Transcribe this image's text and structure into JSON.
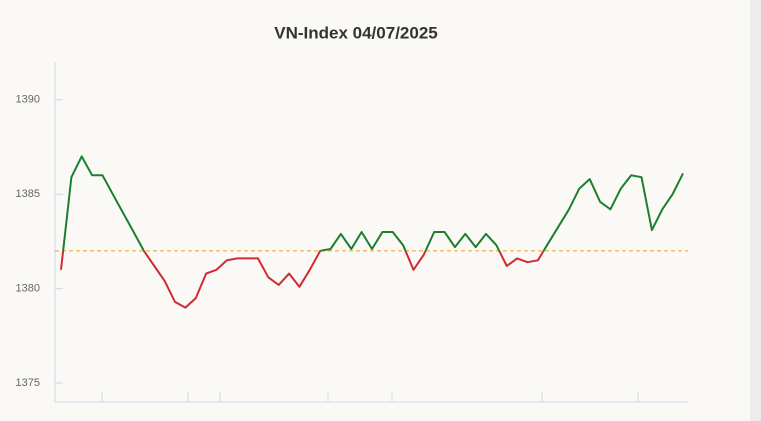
{
  "chart_data": {
    "type": "line",
    "title": "VN-Index 04/07/2025",
    "values": [
      1381,
      1385.9,
      1387,
      1386,
      1386,
      1385,
      1384,
      1383,
      1382,
      1381.2,
      1380.4,
      1379.3,
      1379,
      1379.5,
      1380.8,
      1381,
      1381.5,
      1381.6,
      1381.6,
      1381.6,
      1380.6,
      1380.2,
      1380.8,
      1380.1,
      1381,
      1382,
      1382.1,
      1382.9,
      1382.1,
      1383,
      1382.1,
      1383,
      1383,
      1382.3,
      1381,
      1381.8,
      1383,
      1383,
      1382.2,
      1382.9,
      1382.2,
      1382.9,
      1382.3,
      1381.2,
      1381.6,
      1381.4,
      1381.5,
      1382.4,
      1383.3,
      1384.2,
      1385.3,
      1385.8,
      1384.6,
      1384.2,
      1385.3,
      1386,
      1385.9,
      1383.1,
      1384.2,
      1385,
      1386.1
    ],
    "color_above": "#1a7f2e",
    "color_below": "#d12a35",
    "reference_line": {
      "value": 1382,
      "color": "#f0a020"
    },
    "ylim": [
      1374,
      1392
    ],
    "yticks": [
      1375,
      1380,
      1385,
      1390
    ]
  }
}
